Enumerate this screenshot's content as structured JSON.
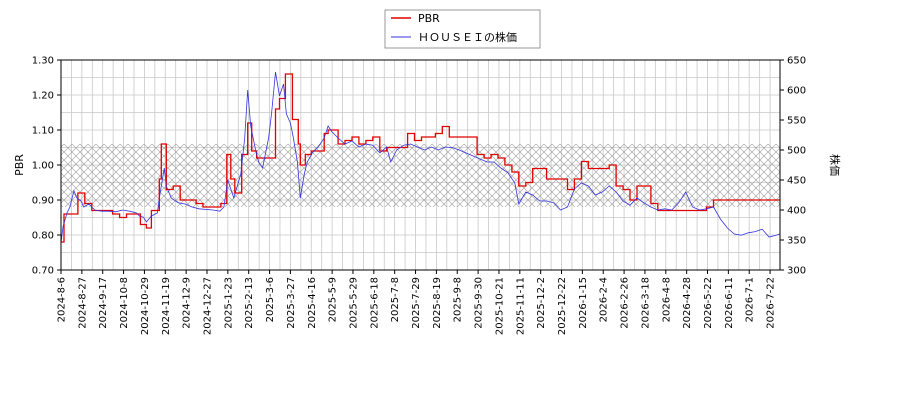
{
  "chart_data": {
    "type": "line",
    "title": "",
    "colors": {
      "pbr": "#e00000",
      "price": "#3333dd",
      "grid": "#c8c8c8",
      "band_fill": "#cccccc"
    },
    "legend": {
      "placement": "top-center",
      "entries": [
        {
          "key": "pbr",
          "label": "PBR"
        },
        {
          "key": "price",
          "label": "ＨＯＵＳＥＩの株価"
        }
      ]
    },
    "x_axis": {
      "type": "date",
      "min": "2024-08-06",
      "max": "2026-07-31",
      "tick_labels": [
        "2024-8-6",
        "2024-8-27",
        "2024-9-17",
        "2024-10-8",
        "2024-10-29",
        "2024-11-19",
        "2024-12-9",
        "2024-12-27",
        "2025-1-23",
        "2025-2-13",
        "2025-3-6",
        "2025-3-27",
        "2025-4-16",
        "2025-5-9",
        "2025-5-29",
        "2025-6-18",
        "2025-7-8",
        "2025-7-29",
        "2025-8-19",
        "2025-9-8",
        "2025-9-30",
        "2025-10-21",
        "2025-11-11",
        "2025-12-2",
        "2025-12-22",
        "2026-1-15",
        "2026-2-4",
        "2026-2-26",
        "2026-3-18",
        "2026-4-8",
        "2026-4-28",
        "2026-5-22",
        "2026-6-11",
        "2026-7-1",
        "2026-7-22"
      ],
      "grid": true
    },
    "y_left": {
      "label": "PBR",
      "min": 0.7,
      "max": 1.3,
      "ticks": [
        "0.70",
        "0.80",
        "0.90",
        "1.00",
        "1.10",
        "1.20",
        "1.30"
      ],
      "grid": true
    },
    "y_right": {
      "label": "株価",
      "min": 300,
      "max": 650,
      "ticks": [
        "300",
        "350",
        "400",
        "450",
        "500",
        "550",
        "600",
        "650"
      ]
    },
    "band": {
      "axis": "left",
      "from": 0.88,
      "to": 1.06,
      "pattern": "crosshatch"
    },
    "series": [
      {
        "name": "PBR",
        "key": "pbr",
        "axis": "left",
        "step": true,
        "points": [
          [
            "2024-08-06",
            0.78
          ],
          [
            "2024-08-09",
            0.86
          ],
          [
            "2024-08-23",
            0.92
          ],
          [
            "2024-08-30",
            0.89
          ],
          [
            "2024-09-06",
            0.87
          ],
          [
            "2024-09-27",
            0.86
          ],
          [
            "2024-10-04",
            0.85
          ],
          [
            "2024-10-11",
            0.86
          ],
          [
            "2024-10-25",
            0.83
          ],
          [
            "2024-10-31",
            0.82
          ],
          [
            "2024-11-05",
            0.87
          ],
          [
            "2024-11-13",
            0.96
          ],
          [
            "2024-11-15",
            1.06
          ],
          [
            "2024-11-20",
            0.93
          ],
          [
            "2024-11-27",
            0.94
          ],
          [
            "2024-12-04",
            0.9
          ],
          [
            "2024-12-13",
            0.9
          ],
          [
            "2024-12-20",
            0.89
          ],
          [
            "2024-12-27",
            0.88
          ],
          [
            "2025-01-07",
            0.88
          ],
          [
            "2025-01-14",
            0.89
          ],
          [
            "2025-01-20",
            1.03
          ],
          [
            "2025-01-24",
            0.96
          ],
          [
            "2025-01-28",
            0.92
          ],
          [
            "2025-02-04",
            1.03
          ],
          [
            "2025-02-10",
            1.12
          ],
          [
            "2025-02-14",
            1.04
          ],
          [
            "2025-02-19",
            1.02
          ],
          [
            "2025-03-10",
            1.16
          ],
          [
            "2025-03-14",
            1.19
          ],
          [
            "2025-03-20",
            1.26
          ],
          [
            "2025-03-27",
            1.13
          ],
          [
            "2025-04-02",
            1.06
          ],
          [
            "2025-04-04",
            1.0
          ],
          [
            "2025-04-09",
            1.03
          ],
          [
            "2025-04-15",
            1.04
          ],
          [
            "2025-04-22",
            1.04
          ],
          [
            "2025-04-28",
            1.09
          ],
          [
            "2025-05-02",
            1.1
          ],
          [
            "2025-05-12",
            1.06
          ],
          [
            "2025-05-19",
            1.07
          ],
          [
            "2025-05-26",
            1.08
          ],
          [
            "2025-06-02",
            1.06
          ],
          [
            "2025-06-09",
            1.07
          ],
          [
            "2025-06-16",
            1.08
          ],
          [
            "2025-06-23",
            1.04
          ],
          [
            "2025-06-30",
            1.05
          ],
          [
            "2025-07-07",
            1.05
          ],
          [
            "2025-07-14",
            1.05
          ],
          [
            "2025-07-21",
            1.09
          ],
          [
            "2025-07-28",
            1.07
          ],
          [
            "2025-08-04",
            1.08
          ],
          [
            "2025-08-11",
            1.08
          ],
          [
            "2025-08-18",
            1.09
          ],
          [
            "2025-08-25",
            1.11
          ],
          [
            "2025-09-01",
            1.08
          ],
          [
            "2025-09-15",
            1.08
          ],
          [
            "2025-09-29",
            1.03
          ],
          [
            "2025-10-06",
            1.02
          ],
          [
            "2025-10-13",
            1.03
          ],
          [
            "2025-10-20",
            1.02
          ],
          [
            "2025-10-27",
            1.0
          ],
          [
            "2025-11-03",
            0.98
          ],
          [
            "2025-11-10",
            0.94
          ],
          [
            "2025-11-17",
            0.95
          ],
          [
            "2025-11-24",
            0.99
          ],
          [
            "2025-12-01",
            0.99
          ],
          [
            "2025-12-08",
            0.96
          ],
          [
            "2025-12-15",
            0.96
          ],
          [
            "2025-12-22",
            0.96
          ],
          [
            "2025-12-29",
            0.93
          ],
          [
            "2026-01-05",
            0.96
          ],
          [
            "2026-01-12",
            1.01
          ],
          [
            "2026-01-19",
            0.99
          ],
          [
            "2026-01-26",
            0.99
          ],
          [
            "2026-02-02",
            0.99
          ],
          [
            "2026-02-09",
            1.0
          ],
          [
            "2026-02-16",
            0.94
          ],
          [
            "2026-02-23",
            0.93
          ],
          [
            "2026-03-02",
            0.9
          ],
          [
            "2026-03-09",
            0.94
          ],
          [
            "2026-03-16",
            0.94
          ],
          [
            "2026-03-23",
            0.89
          ],
          [
            "2026-03-30",
            0.87
          ],
          [
            "2026-04-06",
            0.87
          ],
          [
            "2026-04-27",
            0.87
          ],
          [
            "2026-05-18",
            0.88
          ],
          [
            "2026-05-25",
            0.9
          ],
          [
            "2026-06-15",
            0.9
          ],
          [
            "2026-07-31",
            0.9
          ]
        ]
      },
      {
        "name": "ＨＯＵＳＥＩの株価",
        "key": "price",
        "axis": "right",
        "step": false,
        "points": [
          [
            "2024-08-06",
            345
          ],
          [
            "2024-08-08",
            372
          ],
          [
            "2024-08-12",
            395
          ],
          [
            "2024-08-15",
            405
          ],
          [
            "2024-08-19",
            432
          ],
          [
            "2024-08-22",
            420
          ],
          [
            "2024-08-26",
            415
          ],
          [
            "2024-08-29",
            405
          ],
          [
            "2024-09-03",
            410
          ],
          [
            "2024-09-09",
            400
          ],
          [
            "2024-09-16",
            398
          ],
          [
            "2024-09-23",
            398
          ],
          [
            "2024-09-30",
            397
          ],
          [
            "2024-10-07",
            400
          ],
          [
            "2024-10-14",
            398
          ],
          [
            "2024-10-21",
            395
          ],
          [
            "2024-10-24",
            390
          ],
          [
            "2024-10-28",
            388
          ],
          [
            "2024-10-31",
            380
          ],
          [
            "2024-11-05",
            390
          ],
          [
            "2024-11-11",
            395
          ],
          [
            "2024-11-14",
            430
          ],
          [
            "2024-11-18",
            470
          ],
          [
            "2024-11-20",
            440
          ],
          [
            "2024-11-25",
            420
          ],
          [
            "2024-12-02",
            412
          ],
          [
            "2024-12-09",
            410
          ],
          [
            "2024-12-16",
            405
          ],
          [
            "2024-12-23",
            402
          ],
          [
            "2025-01-06",
            400
          ],
          [
            "2025-01-13",
            398
          ],
          [
            "2025-01-17",
            405
          ],
          [
            "2025-01-21",
            450
          ],
          [
            "2025-01-27",
            420
          ],
          [
            "2025-02-03",
            460
          ],
          [
            "2025-02-07",
            520
          ],
          [
            "2025-02-10",
            600
          ],
          [
            "2025-02-13",
            540
          ],
          [
            "2025-02-18",
            500
          ],
          [
            "2025-02-21",
            480
          ],
          [
            "2025-02-25",
            470
          ],
          [
            "2025-03-03",
            520
          ],
          [
            "2025-03-06",
            560
          ],
          [
            "2025-03-10",
            630
          ],
          [
            "2025-03-14",
            590
          ],
          [
            "2025-03-18",
            610
          ],
          [
            "2025-03-21",
            560
          ],
          [
            "2025-03-25",
            545
          ],
          [
            "2025-03-28",
            520
          ],
          [
            "2025-04-01",
            480
          ],
          [
            "2025-04-04",
            420
          ],
          [
            "2025-04-08",
            460
          ],
          [
            "2025-04-11",
            480
          ],
          [
            "2025-04-16",
            495
          ],
          [
            "2025-04-22",
            505
          ],
          [
            "2025-04-28",
            520
          ],
          [
            "2025-05-02",
            540
          ],
          [
            "2025-05-06",
            530
          ],
          [
            "2025-05-12",
            520
          ],
          [
            "2025-05-19",
            510
          ],
          [
            "2025-05-26",
            515
          ],
          [
            "2025-06-02",
            505
          ],
          [
            "2025-06-09",
            510
          ],
          [
            "2025-06-16",
            508
          ],
          [
            "2025-06-23",
            495
          ],
          [
            "2025-06-30",
            505
          ],
          [
            "2025-07-04",
            480
          ],
          [
            "2025-07-10",
            500
          ],
          [
            "2025-07-17",
            508
          ],
          [
            "2025-07-24",
            510
          ],
          [
            "2025-07-31",
            505
          ],
          [
            "2025-08-07",
            500
          ],
          [
            "2025-08-14",
            505
          ],
          [
            "2025-08-21",
            500
          ],
          [
            "2025-08-28",
            505
          ],
          [
            "2025-09-04",
            504
          ],
          [
            "2025-09-11",
            500
          ],
          [
            "2025-09-18",
            495
          ],
          [
            "2025-09-25",
            490
          ],
          [
            "2025-10-02",
            485
          ],
          [
            "2025-10-09",
            480
          ],
          [
            "2025-10-16",
            480
          ],
          [
            "2025-10-23",
            470
          ],
          [
            "2025-10-30",
            462
          ],
          [
            "2025-11-06",
            445
          ],
          [
            "2025-11-10",
            410
          ],
          [
            "2025-11-17",
            430
          ],
          [
            "2025-11-24",
            425
          ],
          [
            "2025-12-01",
            415
          ],
          [
            "2025-12-08",
            415
          ],
          [
            "2025-12-15",
            412
          ],
          [
            "2025-12-22",
            400
          ],
          [
            "2025-12-29",
            405
          ],
          [
            "2026-01-05",
            435
          ],
          [
            "2026-01-12",
            445
          ],
          [
            "2026-01-19",
            440
          ],
          [
            "2026-01-26",
            425
          ],
          [
            "2026-02-02",
            430
          ],
          [
            "2026-02-09",
            440
          ],
          [
            "2026-02-16",
            430
          ],
          [
            "2026-02-23",
            415
          ],
          [
            "2026-03-02",
            408
          ],
          [
            "2026-03-09",
            420
          ],
          [
            "2026-03-16",
            412
          ],
          [
            "2026-03-23",
            405
          ],
          [
            "2026-03-30",
            400
          ],
          [
            "2026-04-06",
            402
          ],
          [
            "2026-04-13",
            400
          ],
          [
            "2026-04-20",
            412
          ],
          [
            "2026-04-27",
            430
          ],
          [
            "2026-05-04",
            405
          ],
          [
            "2026-05-11",
            400
          ],
          [
            "2026-05-18",
            402
          ],
          [
            "2026-05-25",
            405
          ],
          [
            "2026-06-01",
            385
          ],
          [
            "2026-06-08",
            370
          ],
          [
            "2026-06-15",
            360
          ],
          [
            "2026-06-22",
            358
          ],
          [
            "2026-06-29",
            362
          ],
          [
            "2026-07-06",
            364
          ],
          [
            "2026-07-13",
            368
          ],
          [
            "2026-07-20",
            355
          ],
          [
            "2026-07-27",
            358
          ],
          [
            "2026-07-31",
            360
          ]
        ]
      }
    ]
  }
}
